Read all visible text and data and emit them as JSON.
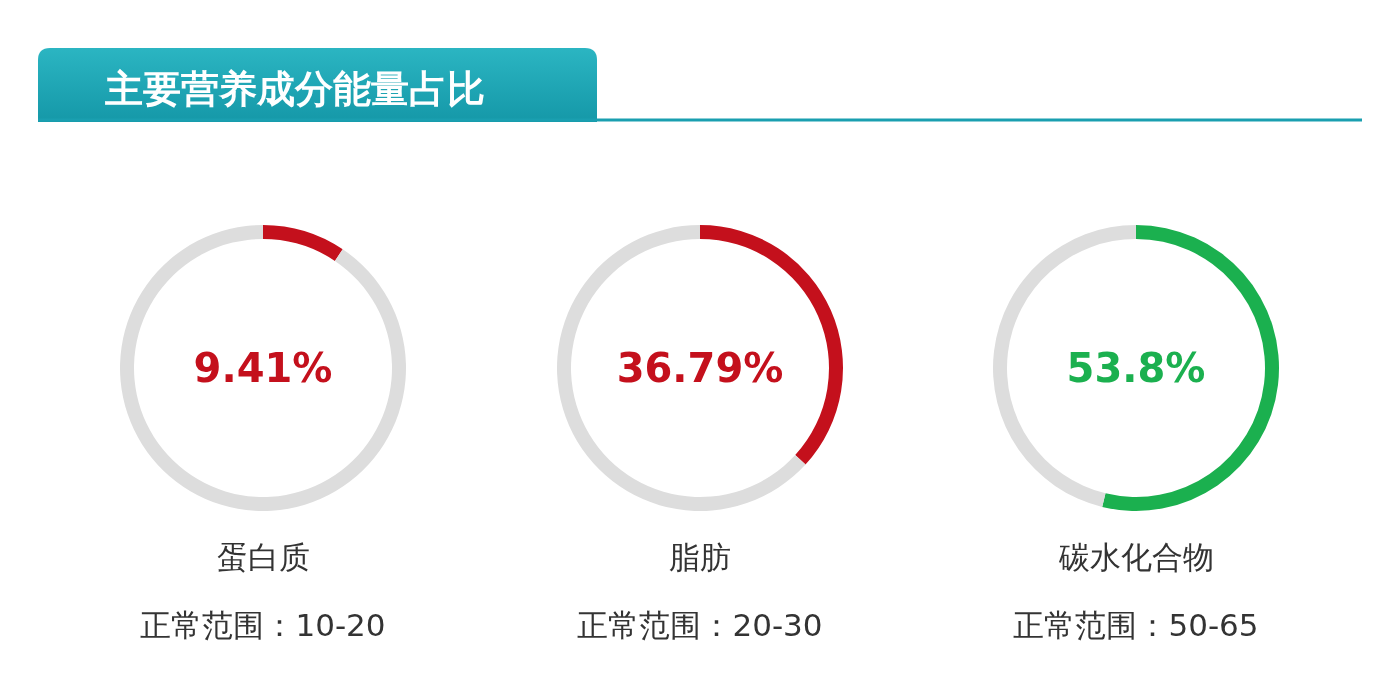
{
  "chart_data": [
    {
      "type": "other",
      "title": "主要营养成分能量占比"
    },
    {
      "type": "donut",
      "title": "蛋白质",
      "categories": [
        null,
        null
      ],
      "values": [
        9.41,
        90.59
      ],
      "colors": [
        "#c4101c",
        "#dddddd"
      ],
      "annotations": [
        "9.41%",
        "正常范围：10-20"
      ]
    },
    {
      "type": "donut",
      "title": "脂肪",
      "categories": [
        null,
        null
      ],
      "values": [
        36.79,
        63.21
      ],
      "colors": [
        "#c4101c",
        "#dddddd"
      ],
      "annotations": [
        "36.79%",
        "正常范围：20-30"
      ]
    },
    {
      "type": "donut",
      "title": "碳水化合物",
      "categories": [
        null,
        null
      ],
      "values": [
        53.8,
        46.2
      ],
      "colors": [
        "#1bb04f",
        "#dddddd"
      ],
      "annotations": [
        "53.8%",
        "正常范围：50-65"
      ]
    }
  ]
}
